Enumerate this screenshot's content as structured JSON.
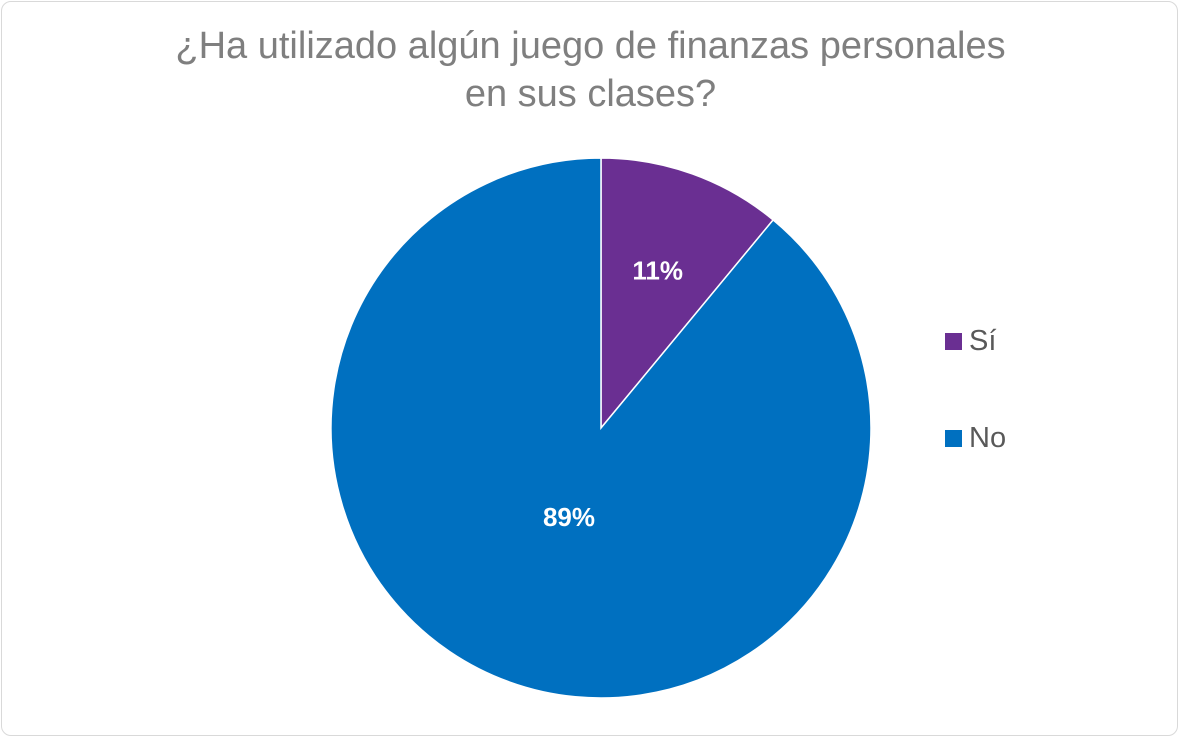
{
  "chart_data": {
    "type": "pie",
    "title_lines": [
      "¿Ha utilizado algún juego de finanzas personales",
      "en sus clases?"
    ],
    "categories": [
      "Sí",
      "No"
    ],
    "values": [
      11,
      89
    ],
    "data_labels": [
      "11%",
      "89%"
    ],
    "colors": [
      "#6a2f92",
      "#0070c0"
    ],
    "legend_position": "right"
  }
}
